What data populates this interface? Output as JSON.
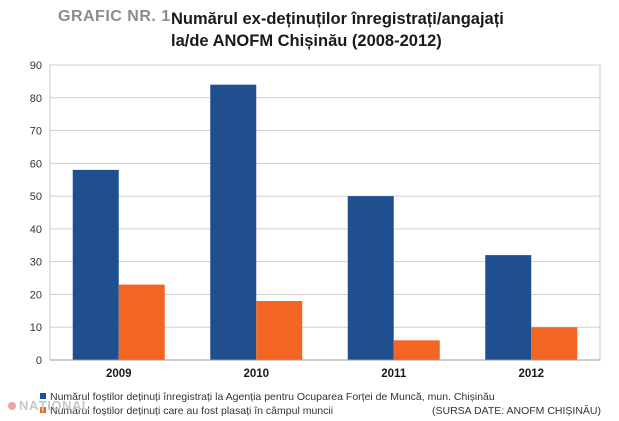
{
  "header": {
    "figure_label": "GRAFIC NR. 1",
    "title_line1": "Numărul ex-deținuților înregistrați/angajați",
    "title_line2": "la/de ANOFM Chișinău (2008-2012)"
  },
  "chart_data": {
    "type": "bar",
    "categories": [
      "2009",
      "2010",
      "2011",
      "2012"
    ],
    "series": [
      {
        "name": "Numărul foștilor deținuți înregistrați la Agenția pentru Ocuparea Forței de Muncă, mun. Chișinău",
        "values": [
          58,
          84,
          50,
          32
        ],
        "color": "#1f4f8f"
      },
      {
        "name": "Numărul foștilor deținuți care au fost plasați în câmpul muncii",
        "values": [
          23,
          18,
          6,
          10
        ],
        "color": "#f26522"
      }
    ],
    "ylim": [
      0,
      90
    ],
    "yticks": [
      "0",
      "10",
      "20",
      "30",
      "40",
      "50",
      "60",
      "70",
      "80",
      "90"
    ],
    "grid": true,
    "legend_position": "bottom",
    "source": "(SURSA DATE: ANOFM CHIȘINĂU)"
  },
  "watermark": "NAȚIONAL"
}
